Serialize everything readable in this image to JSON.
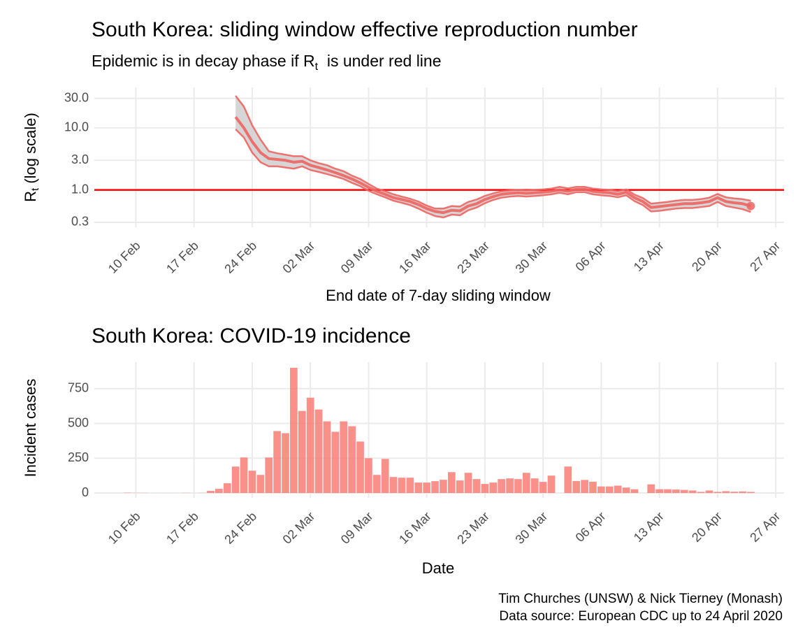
{
  "chart_data": [
    {
      "type": "line",
      "title": "South Korea: sliding window effective reproduction number",
      "subtitle": [
        "Epidemic is in decay phase if R",
        "t",
        "  is under red line"
      ],
      "ylabel": [
        "R",
        "t",
        " (log scale)"
      ],
      "xlabel": "End date of 7-day sliding window",
      "x": [
        "22 Feb",
        "23 Feb",
        "24 Feb",
        "25 Feb",
        "26 Feb",
        "27 Feb",
        "28 Feb",
        "29 Feb",
        "01 Mar",
        "02 Mar",
        "03 Mar",
        "04 Mar",
        "05 Mar",
        "06 Mar",
        "07 Mar",
        "08 Mar",
        "09 Mar",
        "10 Mar",
        "11 Mar",
        "12 Mar",
        "13 Mar",
        "14 Mar",
        "15 Mar",
        "16 Mar",
        "17 Mar",
        "18 Mar",
        "19 Mar",
        "20 Mar",
        "21 Mar",
        "22 Mar",
        "23 Mar",
        "24 Mar",
        "25 Mar",
        "26 Mar",
        "27 Mar",
        "28 Mar",
        "29 Mar",
        "30 Mar",
        "31 Mar",
        "01 Apr",
        "02 Apr",
        "03 Apr",
        "04 Apr",
        "05 Apr",
        "06 Apr",
        "07 Apr",
        "08 Apr",
        "09 Apr",
        "10 Apr",
        "11 Apr",
        "12 Apr",
        "13 Apr",
        "14 Apr",
        "15 Apr",
        "16 Apr",
        "17 Apr",
        "18 Apr",
        "19 Apr",
        "20 Apr",
        "21 Apr",
        "22 Apr",
        "23 Apr",
        "24 Apr"
      ],
      "values": [
        15,
        10,
        6,
        4,
        3.2,
        3.1,
        3.0,
        2.8,
        2.9,
        2.5,
        2.3,
        2.1,
        1.9,
        1.7,
        1.5,
        1.3,
        1.1,
        0.95,
        0.85,
        0.75,
        0.7,
        0.65,
        0.58,
        0.5,
        0.45,
        0.43,
        0.47,
        0.46,
        0.55,
        0.6,
        0.7,
        0.78,
        0.85,
        0.88,
        0.9,
        0.88,
        0.9,
        0.92,
        0.95,
        1.0,
        0.95,
        1.02,
        1.02,
        0.95,
        0.92,
        0.9,
        0.85,
        0.92,
        0.75,
        0.65,
        0.52,
        0.54,
        0.56,
        0.58,
        0.6,
        0.6,
        0.62,
        0.65,
        0.75,
        0.65,
        0.62,
        0.6,
        0.55
      ],
      "upper": [
        33,
        22,
        11,
        6.5,
        4.2,
        3.9,
        3.7,
        3.5,
        3.5,
        3.0,
        2.7,
        2.5,
        2.2,
        2.0,
        1.7,
        1.5,
        1.25,
        1.05,
        0.95,
        0.85,
        0.78,
        0.72,
        0.65,
        0.56,
        0.5,
        0.5,
        0.55,
        0.54,
        0.64,
        0.7,
        0.8,
        0.88,
        0.95,
        0.98,
        1.0,
        0.98,
        1.0,
        1.02,
        1.05,
        1.12,
        1.06,
        1.12,
        1.12,
        1.05,
        1.02,
        1.0,
        0.95,
        1.02,
        0.84,
        0.74,
        0.6,
        0.62,
        0.64,
        0.67,
        0.69,
        0.69,
        0.71,
        0.75,
        0.86,
        0.76,
        0.73,
        0.71,
        0.67
      ],
      "lower": [
        9.5,
        7,
        4,
        2.8,
        2.4,
        2.4,
        2.3,
        2.2,
        2.4,
        2.1,
        1.95,
        1.8,
        1.65,
        1.5,
        1.3,
        1.15,
        0.97,
        0.85,
        0.76,
        0.67,
        0.62,
        0.57,
        0.5,
        0.43,
        0.38,
        0.36,
        0.4,
        0.39,
        0.47,
        0.52,
        0.61,
        0.69,
        0.75,
        0.78,
        0.8,
        0.78,
        0.8,
        0.82,
        0.85,
        0.9,
        0.85,
        0.92,
        0.92,
        0.85,
        0.82,
        0.8,
        0.76,
        0.82,
        0.66,
        0.57,
        0.45,
        0.46,
        0.48,
        0.5,
        0.51,
        0.51,
        0.53,
        0.55,
        0.64,
        0.55,
        0.52,
        0.49,
        0.44
      ],
      "color": "#ef6461",
      "band_color": "#cfcfcf",
      "hline": 1,
      "hline_color": "#ff0000",
      "log_y": true,
      "ylim": [
        0.25,
        45
      ],
      "yticks": [
        0.3,
        {
          "value": 1,
          "label": "1.0"
        },
        {
          "value": 3,
          "label": "3.0"
        },
        {
          "value": 10,
          "label": "10.0"
        },
        {
          "value": 30,
          "label": "30.0"
        }
      ],
      "xlim": [
        "05 Feb",
        "28 Apr"
      ],
      "xticks": [
        "10 Feb",
        "17 Feb",
        "24 Feb",
        "02 Mar",
        "09 Mar",
        "16 Mar",
        "23 Mar",
        "30 Mar",
        "06 Apr",
        "13 Apr",
        "20 Apr",
        "27 Apr"
      ],
      "grid": true
    },
    {
      "type": "bar",
      "title": "South Korea: COVID-19 incidence",
      "ylabel": "Incident cases",
      "xlabel": "Date",
      "x": [
        "08 Feb",
        "09 Feb",
        "10 Feb",
        "11 Feb",
        "12 Feb",
        "13 Feb",
        "14 Feb",
        "15 Feb",
        "16 Feb",
        "17 Feb",
        "18 Feb",
        "19 Feb",
        "20 Feb",
        "21 Feb",
        "22 Feb",
        "23 Feb",
        "24 Feb",
        "25 Feb",
        "26 Feb",
        "27 Feb",
        "28 Feb",
        "29 Feb",
        "01 Mar",
        "02 Mar",
        "03 Mar",
        "04 Mar",
        "05 Mar",
        "06 Mar",
        "07 Mar",
        "08 Mar",
        "09 Mar",
        "10 Mar",
        "11 Mar",
        "12 Mar",
        "13 Mar",
        "14 Mar",
        "15 Mar",
        "16 Mar",
        "17 Mar",
        "18 Mar",
        "19 Mar",
        "20 Mar",
        "21 Mar",
        "22 Mar",
        "23 Mar",
        "24 Mar",
        "25 Mar",
        "26 Mar",
        "27 Mar",
        "28 Mar",
        "29 Mar",
        "30 Mar",
        "31 Mar",
        "01 Apr",
        "02 Apr",
        "03 Apr",
        "04 Apr",
        "05 Apr",
        "06 Apr",
        "07 Apr",
        "08 Apr",
        "09 Apr",
        "10 Apr",
        "11 Apr",
        "12 Apr",
        "13 Apr",
        "14 Apr",
        "15 Apr",
        "16 Apr",
        "17 Apr",
        "18 Apr",
        "19 Apr",
        "20 Apr",
        "21 Apr",
        "22 Apr",
        "23 Apr",
        "24 Apr"
      ],
      "values": [
        0,
        2,
        1,
        1,
        0,
        0,
        0,
        0,
        1,
        0,
        1,
        15,
        30,
        70,
        190,
        255,
        160,
        130,
        255,
        445,
        430,
        900,
        590,
        685,
        600,
        515,
        440,
        515,
        480,
        370,
        250,
        130,
        245,
        115,
        110,
        110,
        75,
        75,
        85,
        95,
        150,
        90,
        145,
        100,
        65,
        75,
        100,
        105,
        100,
        145,
        105,
        80,
        125,
        0,
        190,
        86,
        94,
        81,
        47,
        47,
        53,
        39,
        27,
        0,
        62,
        27,
        27,
        25,
        22,
        18,
        8,
        18,
        8,
        13,
        9,
        11,
        8
      ],
      "color": "#f8766d",
      "ylim": [
        -35,
        940
      ],
      "yticks": [
        0,
        250,
        500,
        750
      ],
      "xlim": [
        "05 Feb",
        "28 Apr"
      ],
      "xticks": [
        "10 Feb",
        "17 Feb",
        "24 Feb",
        "02 Mar",
        "09 Mar",
        "16 Mar",
        "23 Mar",
        "30 Mar",
        "06 Apr",
        "13 Apr",
        "20 Apr",
        "27 Apr"
      ],
      "grid": true,
      "caption": [
        "Tim Churches (UNSW) & Nick Tierney (Monash)",
        "Data source: European CDC up to 24 April 2020"
      ]
    }
  ]
}
